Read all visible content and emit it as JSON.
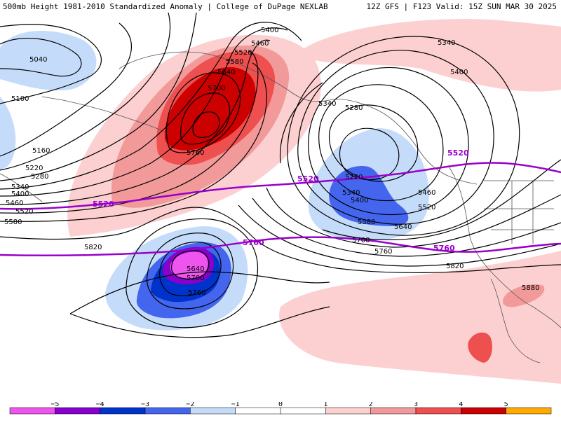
{
  "header": {
    "left_title": "500mb Height 1981-2010 Standardized Anomaly | College of DuPage NEXLAB",
    "right_title": "12Z GFS | F123 Valid: 15Z SUN MAR 30 2025"
  },
  "colors": {
    "neg5": "#ee55ee",
    "neg4": "#8800cc",
    "neg3": "#0033cc",
    "neg2": "#4466ee",
    "neg1": "#c4dcfa",
    "pos1": "#fcd0d0",
    "pos2": "#f29a9a",
    "pos3": "#ee5050",
    "pos4": "#cc0000",
    "pos5": "#ffaa00",
    "contour": "#000000",
    "highlight": "#9900cc",
    "coast": "#555555"
  },
  "contour_labels": {
    "c5040": "5040",
    "c5100": "5100",
    "c5160": "5160",
    "c5220a": "5220",
    "c5280a": "5280",
    "c5340a": "5340",
    "c5400a": "5400",
    "c5460a": "5460",
    "c5520a": "5520",
    "c5580a": "5580",
    "c5400b": "5400",
    "c5460b": "5460",
    "c5520b": "5520",
    "c5580b": "5580",
    "c5640a": "5640",
    "c5700a": "5700",
    "c5760a": "5760",
    "c5340b": "5340",
    "c5340c": "5340",
    "c5400c": "5400",
    "c5280b": "5280",
    "c5220b": "5220",
    "c5340d": "5340",
    "c5400d": "5400",
    "c5460c": "5460",
    "c5520c": "5520",
    "c5580c": "5580",
    "c5640b": "5640",
    "c5700b": "5700",
    "c5760b": "5760",
    "c5820a": "5820",
    "c5820b": "5820",
    "c5640c": "5640",
    "c5700c": "5700",
    "c5760c": "5760",
    "c5880": "5880",
    "p5520a": "5520",
    "p5520b": "5520",
    "p5520c": "5520",
    "p5760a": "5760",
    "p5760b": "5760"
  },
  "colorbar": {
    "ticks": [
      "−5",
      "−4",
      "−3",
      "−2",
      "−1",
      "0",
      "1",
      "2",
      "3",
      "4",
      "5"
    ],
    "bins": [
      -5,
      -4,
      -3,
      -2,
      -1,
      0,
      1,
      2,
      3,
      4,
      5
    ]
  }
}
